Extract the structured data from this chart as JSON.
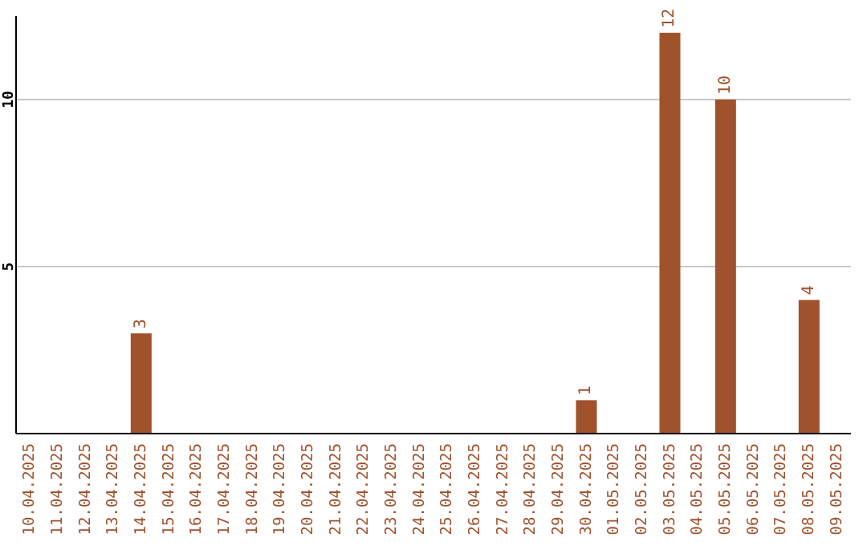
{
  "chart_data": {
    "type": "bar",
    "categories": [
      "10.04.2025",
      "11.04.2025",
      "12.04.2025",
      "13.04.2025",
      "14.04.2025",
      "15.04.2025",
      "16.04.2025",
      "17.04.2025",
      "18.04.2025",
      "19.04.2025",
      "20.04.2025",
      "21.04.2025",
      "22.04.2025",
      "23.04.2025",
      "24.04.2025",
      "25.04.2025",
      "26.04.2025",
      "27.04.2025",
      "28.04.2025",
      "29.04.2025",
      "30.04.2025",
      "01.05.2025",
      "02.05.2025",
      "03.05.2025",
      "04.05.2025",
      "05.05.2025",
      "06.05.2025",
      "07.05.2025",
      "08.05.2025",
      "09.05.2025"
    ],
    "values": [
      0,
      0,
      0,
      0,
      3,
      0,
      0,
      0,
      0,
      0,
      0,
      0,
      0,
      0,
      0,
      0,
      0,
      0,
      0,
      0,
      1,
      0,
      0,
      12,
      0,
      10,
      0,
      0,
      4,
      0
    ],
    "value_labels": [
      null,
      null,
      null,
      null,
      "3",
      null,
      null,
      null,
      null,
      null,
      null,
      null,
      null,
      null,
      null,
      null,
      null,
      null,
      null,
      null,
      "1",
      null,
      null,
      "12",
      null,
      "10",
      null,
      null,
      "4",
      null
    ],
    "color": "#a0522d",
    "ylim": [
      0,
      12.5
    ],
    "yticks": [
      5,
      10
    ],
    "grid": "y",
    "legend": false
  }
}
